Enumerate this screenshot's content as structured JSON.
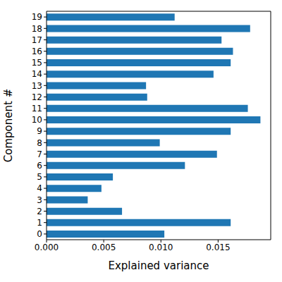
{
  "chart_data": {
    "type": "bar",
    "orientation": "horizontal",
    "x_label": "Explained variance",
    "y_label": "Component #",
    "categories": [
      "0",
      "1",
      "2",
      "3",
      "4",
      "5",
      "6",
      "7",
      "8",
      "9",
      "10",
      "11",
      "12",
      "13",
      "14",
      "15",
      "16",
      "17",
      "18",
      "19"
    ],
    "values": [
      0.0103,
      0.0161,
      0.0066,
      0.0036,
      0.0048,
      0.0058,
      0.0121,
      0.0149,
      0.0099,
      0.0161,
      0.0187,
      0.0176,
      0.0088,
      0.0087,
      0.0146,
      0.0161,
      0.0163,
      0.0153,
      0.0178,
      0.0112
    ],
    "color": "#1f77b4",
    "xlim": [
      0,
      0.0196
    ],
    "xticks": [
      {
        "value": 0,
        "label": "0.000"
      },
      {
        "value": 0.005,
        "label": "0.005"
      },
      {
        "value": 0.01,
        "label": "0.010"
      },
      {
        "value": 0.015,
        "label": "0.015"
      }
    ],
    "grid": false
  }
}
